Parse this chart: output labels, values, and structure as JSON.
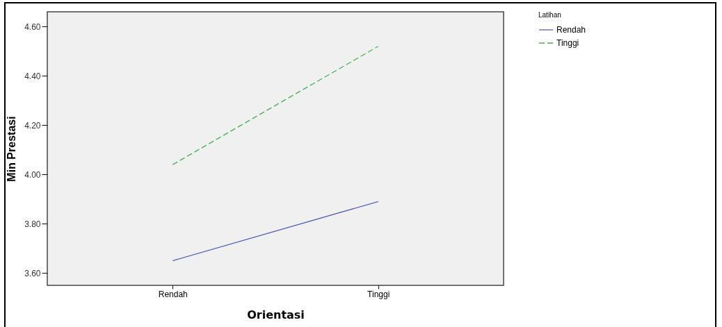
{
  "chart_data": {
    "type": "line",
    "xlabel": "Orientasi",
    "ylabel": "Min Prestasi",
    "legend_title": "Latihan",
    "categories": [
      "Rendah",
      "Tinggi"
    ],
    "series": [
      {
        "name": "Rendah",
        "color": "#5262b8",
        "line_style": "solid",
        "values": [
          3.65,
          3.89
        ]
      },
      {
        "name": "Tinggi",
        "color": "#45b054",
        "line_style": "dashed",
        "values": [
          4.04,
          4.52
        ]
      }
    ],
    "ylim": [
      3.55,
      4.66
    ],
    "yticks": [
      {
        "value": 3.6,
        "label": "3.60"
      },
      {
        "value": 3.8,
        "label": "3.80"
      },
      {
        "value": 4.0,
        "label": "4.00"
      },
      {
        "value": 4.2,
        "label": "4.20"
      },
      {
        "value": 4.4,
        "label": "4.40"
      },
      {
        "value": 4.6,
        "label": "4.60"
      }
    ],
    "grid": false,
    "legend": "top right"
  }
}
